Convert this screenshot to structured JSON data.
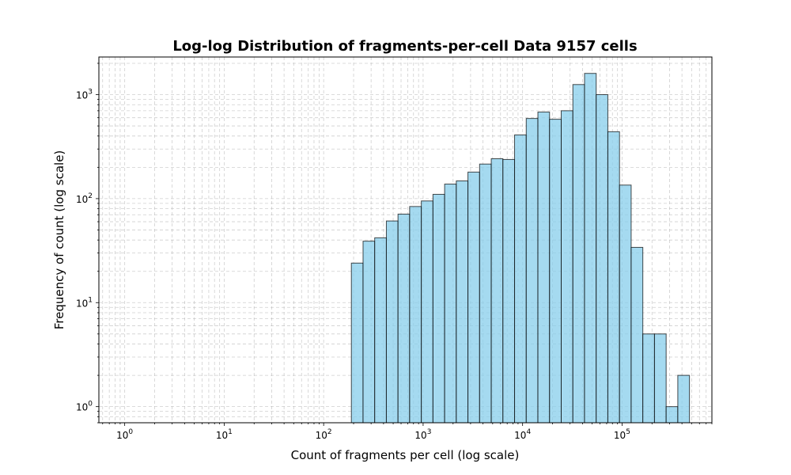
{
  "chart_data": {
    "type": "bar",
    "title": "Log-log Distribution of fragments-per-cell Data 9157 cells",
    "xlabel": "Count of fragments per cell (log scale)",
    "ylabel": "Frequency of count (log scale)",
    "x_scale": "log",
    "y_scale": "log",
    "xlim": [
      0.55,
      800000
    ],
    "ylim": [
      0.7,
      2300
    ],
    "grid": true,
    "x_ticks": [
      {
        "value": 1,
        "base": "10",
        "exp": "0"
      },
      {
        "value": 10,
        "base": "10",
        "exp": "1"
      },
      {
        "value": 100,
        "base": "10",
        "exp": "2"
      },
      {
        "value": 1000,
        "base": "10",
        "exp": "3"
      },
      {
        "value": 10000,
        "base": "10",
        "exp": "4"
      },
      {
        "value": 100000,
        "base": "10",
        "exp": "5"
      }
    ],
    "y_ticks": [
      {
        "value": 1,
        "base": "10",
        "exp": "0"
      },
      {
        "value": 10,
        "base": "10",
        "exp": "1"
      },
      {
        "value": 100,
        "base": "10",
        "exp": "2"
      },
      {
        "value": 1000,
        "base": "10",
        "exp": "3"
      }
    ],
    "bin_edges": [
      190,
      249,
      326,
      427,
      559,
      732,
      959,
      1256,
      1645,
      2155,
      2822,
      3696,
      4842,
      6341,
      8306,
      10879,
      14250,
      18665,
      24448,
      32021,
      41942,
      54936,
      71955,
      94248,
      123446,
      161692,
      211786,
      277399,
      363337
    ],
    "counts": [
      24,
      39,
      42,
      61,
      71,
      84,
      95,
      110,
      138,
      148,
      180,
      215,
      242,
      238,
      410,
      590,
      680,
      580,
      700,
      1250,
      1600,
      1000,
      440,
      135,
      34,
      5,
      5,
      1,
      2
    ],
    "colors": {
      "bar_fill": "#87CEEB",
      "bar_edge": "#000000"
    }
  }
}
